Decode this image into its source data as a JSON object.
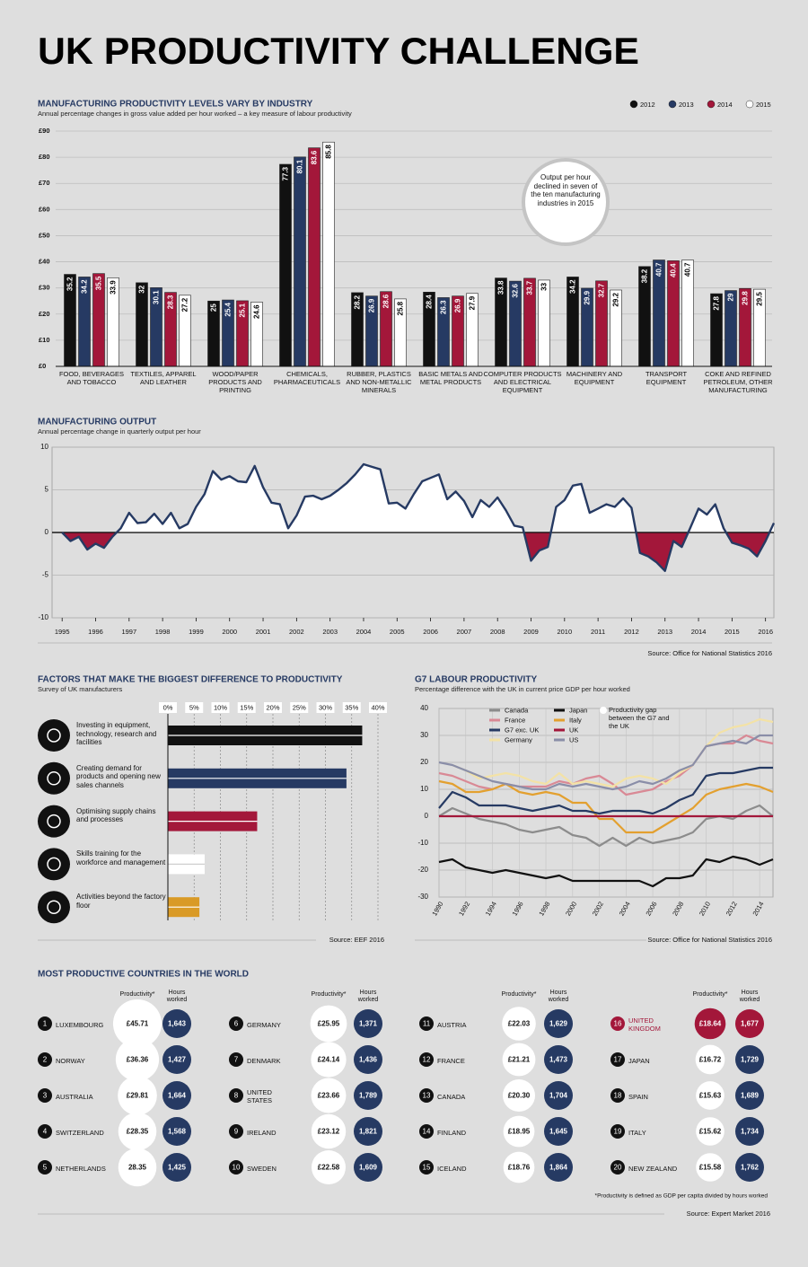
{
  "title": "UK PRODUCTIVITY CHALLENGE",
  "chart_data": [
    {
      "type": "bar",
      "title": "MANUFACTURING PRODUCTIVITY LEVELS VARY BY INDUSTRY",
      "subtitle": "Annual percentage changes in gross value added per hour worked – a key measure of labour productivity",
      "categories": [
        "FOOD, BEVERAGES AND TOBACCO",
        "TEXTILES, APPAREL AND LEATHER",
        "WOOD/PAPER PRODUCTS AND PRINTING",
        "CHEMICALS, PHARMACEUTICALS",
        "RUBBER, PLASTICS AND NON-METALLIC MINERALS",
        "BASIC METALS AND METAL PRODUCTS",
        "COMPUTER PRODUCTS AND ELECTRICAL EQUIPMENT",
        "MACHINERY AND EQUIPMENT",
        "TRANSPORT EQUIPMENT",
        "COKE AND REFINED PETROLEUM, OTHER MANUFACTURING"
      ],
      "series": [
        {
          "name": "2012",
          "color": "#111111",
          "values": [
            35.2,
            32,
            25,
            77.3,
            28.2,
            28.4,
            33.8,
            34.2,
            38.2,
            27.8
          ]
        },
        {
          "name": "2013",
          "color": "#263a63",
          "values": [
            34.2,
            30.1,
            25.4,
            80.1,
            26.9,
            26.3,
            32.6,
            29.9,
            40.7,
            29
          ]
        },
        {
          "name": "2014",
          "color": "#a3173a",
          "values": [
            35.5,
            28.3,
            25.1,
            83.6,
            28.6,
            26.9,
            33.7,
            32.7,
            40.4,
            29.8
          ]
        },
        {
          "name": "2015",
          "color": "#ffffff",
          "values": [
            33.9,
            27.2,
            24.6,
            85.8,
            25.8,
            27.9,
            33,
            29.2,
            40.7,
            29.5
          ]
        }
      ],
      "ylim": [
        0,
        90
      ],
      "yticks": [
        {
          "value": 0,
          "label": "£0"
        },
        {
          "value": 10,
          "label": "£10"
        },
        {
          "value": 20,
          "label": "£20"
        },
        {
          "value": 30,
          "label": "£30"
        },
        {
          "value": 40,
          "label": "£40"
        },
        {
          "value": 50,
          "label": "£50"
        },
        {
          "value": 60,
          "label": "£60"
        },
        {
          "value": 70,
          "label": "£70"
        },
        {
          "value": 80,
          "label": "£80"
        },
        {
          "value": 90,
          "label": "£90"
        }
      ],
      "grid": true,
      "legend": "top-right",
      "annotation": "Output per hour declined in seven of the ten manufacturing industries in 2015"
    },
    {
      "type": "area",
      "title": "MANUFACTURING OUTPUT",
      "subtitle": "Annual percentage change in quarterly output per hour",
      "x": [
        1995,
        1995.25,
        1995.5,
        1995.75,
        1996,
        1996.25,
        1996.5,
        1996.75,
        1997,
        1997.25,
        1997.5,
        1997.75,
        1998,
        1998.25,
        1998.5,
        1998.75,
        1999,
        1999.25,
        1999.5,
        1999.75,
        2000,
        2000.25,
        2000.5,
        2000.75,
        2001,
        2001.25,
        2001.5,
        2001.75,
        2002,
        2002.25,
        2002.5,
        2002.75,
        2003,
        2003.25,
        2003.5,
        2003.75,
        2004,
        2004.25,
        2004.5,
        2004.75,
        2005,
        2005.25,
        2005.5,
        2005.75,
        2006,
        2006.25,
        2006.5,
        2006.75,
        2007,
        2007.25,
        2007.5,
        2007.75,
        2008,
        2008.25,
        2008.5,
        2008.75,
        2009,
        2009.25,
        2009.5,
        2009.75,
        2010,
        2010.25,
        2010.5,
        2010.75,
        2011,
        2011.25,
        2011.5,
        2011.75,
        2012,
        2012.25,
        2012.5,
        2012.75,
        2013,
        2013.25,
        2013.5,
        2013.75,
        2014,
        2014.25,
        2014.5,
        2014.75,
        2015,
        2015.25,
        2015.5,
        2015.75,
        2016,
        2016.25
      ],
      "values": [
        0,
        -1,
        -0.5,
        -2,
        -1.3,
        -1.8,
        -0.5,
        0.5,
        2.3,
        1.1,
        1.2,
        2.2,
        1.0,
        2.3,
        0.5,
        1.0,
        3.0,
        4.5,
        7.2,
        6.2,
        6.6,
        6.0,
        5.9,
        7.8,
        5.3,
        3.5,
        3.3,
        0.5,
        2.0,
        4.2,
        4.3,
        3.9,
        4.3,
        5.0,
        5.8,
        6.8,
        8.0,
        7.7,
        7.4,
        3.4,
        3.5,
        2.8,
        4.5,
        6.0,
        6.4,
        6.8,
        3.9,
        4.8,
        3.7,
        1.8,
        3.8,
        3.0,
        4.1,
        2.6,
        0.8,
        0.6,
        -3.3,
        -2.1,
        -1.7,
        3.0,
        3.8,
        5.5,
        5.7,
        2.3,
        2.8,
        3.3,
        3.0,
        4.0,
        2.9,
        -2.4,
        -2.8,
        -3.5,
        -4.5,
        -1.0,
        -1.7,
        0.5,
        2.8,
        2.1,
        3.3,
        0.5,
        -1.2,
        -1.5,
        -1.9,
        -2.8,
        -1.0,
        1.1
      ],
      "xlim": [
        1994.7,
        2016.25
      ],
      "xticks": [
        1995,
        1996,
        1997,
        1998,
        1999,
        2000,
        2001,
        2002,
        2003,
        2004,
        2005,
        2006,
        2007,
        2008,
        2009,
        2010,
        2011,
        2012,
        2013,
        2014,
        2015,
        2016
      ],
      "ylim": [
        -10,
        10
      ],
      "yticks": [
        -10,
        -5,
        0,
        5,
        10
      ],
      "line_color": "#263a63",
      "positive_color": "#ffffff",
      "negative_color": "#a3173a",
      "source": "Source: Office for National Statistics 2016"
    },
    {
      "type": "hbar",
      "title": "FACTORS THAT MAKE THE BIGGEST DIFFERENCE TO PRODUCTIVITY",
      "subtitle": "Survey of UK manufacturers",
      "categories": [
        "Investing in equipment, technology, research and facilities",
        "Creating demand for products and opening new sales channels",
        "Optimising supply chains and processes",
        "Skills training for the workforce and management",
        "Activities beyond the factory floor"
      ],
      "values": [
        37,
        34,
        17,
        7,
        6
      ],
      "colors": [
        "#111111",
        "#263a63",
        "#a3173a",
        "#ffffff",
        "#d99a26"
      ],
      "xlim": [
        0,
        40
      ],
      "xticks": [
        {
          "value": 0,
          "label": "0%"
        },
        {
          "value": 5,
          "label": "5%"
        },
        {
          "value": 10,
          "label": "10%"
        },
        {
          "value": 15,
          "label": "15%"
        },
        {
          "value": 20,
          "label": "20%"
        },
        {
          "value": 25,
          "label": "25%"
        },
        {
          "value": 30,
          "label": "30%"
        },
        {
          "value": 35,
          "label": "35%"
        },
        {
          "value": 40,
          "label": "40%"
        }
      ],
      "grid": true,
      "source": "Source: EEF 2016"
    },
    {
      "type": "line",
      "title": "G7 LABOUR PRODUCTIVITY",
      "subtitle": "Percentage difference with the UK in current price GDP per hour worked",
      "x": [
        1990,
        1991,
        1992,
        1993,
        1994,
        1995,
        1996,
        1997,
        1998,
        1999,
        2000,
        2001,
        2002,
        2003,
        2004,
        2005,
        2006,
        2007,
        2008,
        2009,
        2010,
        2011,
        2012,
        2013,
        2014,
        2015
      ],
      "series": [
        {
          "name": "Canada",
          "color": "#8c8c8c",
          "values": [
            0,
            3,
            1,
            -1,
            -2,
            -3,
            -5,
            -6,
            -5,
            -4,
            -7,
            -8,
            -11,
            -8,
            -11,
            -8,
            -10,
            -9,
            -8,
            -6,
            -1,
            0,
            -1,
            2,
            4,
            0
          ]
        },
        {
          "name": "Japan",
          "color": "#111111",
          "values": [
            -17,
            -16,
            -19,
            -20,
            -21,
            -20,
            -21,
            -22,
            -23,
            -22,
            -24,
            -24,
            -24,
            -24,
            -24,
            -24,
            -26,
            -23,
            -23,
            -22,
            -16,
            -17,
            -15,
            -16,
            -18,
            -16
          ]
        },
        {
          "name": "France",
          "color": "#d98995",
          "values": [
            16,
            15,
            13,
            11,
            10,
            12,
            11,
            11,
            11,
            13,
            12,
            14,
            15,
            12,
            8,
            9,
            10,
            13,
            15,
            19,
            26,
            27,
            27,
            30,
            28,
            27
          ]
        },
        {
          "name": "Italy",
          "color": "#e3a02f",
          "values": [
            13,
            12,
            9,
            9,
            10,
            12,
            9,
            8,
            9,
            8,
            5,
            5,
            -1,
            -1,
            -6,
            -6,
            -6,
            -3,
            0,
            3,
            8,
            10,
            11,
            12,
            11,
            9
          ]
        },
        {
          "name": "G7 exc. UK",
          "color": "#263a63",
          "values": [
            3,
            9,
            7,
            4,
            4,
            4,
            3,
            2,
            3,
            4,
            2,
            2,
            1,
            2,
            2,
            2,
            1,
            3,
            6,
            8,
            15,
            16,
            16,
            17,
            18,
            18
          ]
        },
        {
          "name": "UK",
          "color": "#a3173a",
          "values": [
            0,
            0,
            0,
            0,
            0,
            0,
            0,
            0,
            0,
            0,
            0,
            0,
            0,
            0,
            0,
            0,
            0,
            0,
            0,
            0,
            0,
            0,
            0,
            0,
            0,
            0
          ]
        },
        {
          "name": "Germany",
          "color": "#f3e2a6",
          "values": [
            null,
            19,
            17,
            14,
            15,
            16,
            15,
            13,
            12,
            16,
            12,
            13,
            12,
            11,
            14,
            15,
            14,
            12,
            16,
            19,
            26,
            31,
            33,
            34,
            36,
            35
          ]
        },
        {
          "name": "US",
          "color": "#8a8ea8",
          "values": [
            20,
            19,
            17,
            15,
            13,
            12,
            11,
            10,
            10,
            12,
            11,
            12,
            11,
            10,
            11,
            13,
            12,
            14,
            17,
            19,
            26,
            27,
            28,
            27,
            30,
            30
          ]
        }
      ],
      "xlim": [
        1990,
        2015
      ],
      "xticks": [
        1990,
        1992,
        1994,
        1996,
        1998,
        2000,
        2002,
        2004,
        2006,
        2008,
        2010,
        2012,
        2014
      ],
      "ylim": [
        -30,
        40
      ],
      "yticks": [
        -30,
        -20,
        -10,
        0,
        10,
        20,
        30,
        40
      ],
      "grid": true,
      "annotation": "Productivity gap between the G7 and the UK",
      "source": "Source: Office for National Statistics 2016"
    }
  ],
  "countries": {
    "title": "MOST PRODUCTIVE COUNTRIES IN THE WORLD",
    "headers": [
      "Productivity*",
      "Hours worked"
    ],
    "circle_color": "#263a63",
    "rows": [
      {
        "rank": 1,
        "name": "LUXEMBOURG",
        "productivity": 45.71,
        "productivity_label": "£45.71",
        "hours": 1643,
        "hours_label": "1,643"
      },
      {
        "rank": 2,
        "name": "NORWAY",
        "productivity": 36.36,
        "productivity_label": "£36.36",
        "hours": 1427,
        "hours_label": "1,427"
      },
      {
        "rank": 3,
        "name": "AUSTRALIA",
        "productivity": 29.81,
        "productivity_label": "£29.81",
        "hours": 1664,
        "hours_label": "1,664"
      },
      {
        "rank": 4,
        "name": "SWITZERLAND",
        "productivity": 28.35,
        "productivity_label": "£28.35",
        "hours": 1568,
        "hours_label": "1,568"
      },
      {
        "rank": 5,
        "name": "NETHERLANDS",
        "productivity": 28.35,
        "hours": 1425,
        "hours_label": "1,425"
      },
      {
        "rank": 6,
        "name": "GERMANY",
        "productivity": 25.95,
        "productivity_label": "£25.95",
        "hours": 1371,
        "hours_label": "1,371"
      },
      {
        "rank": 7,
        "name": "DENMARK",
        "productivity": 24.14,
        "productivity_label": "£24.14",
        "hours": 1436,
        "hours_label": "1,436"
      },
      {
        "rank": 8,
        "name": "UNITED STATES",
        "productivity": 23.66,
        "productivity_label": "£23.66",
        "hours": 1789,
        "hours_label": "1,789"
      },
      {
        "rank": 9,
        "name": "IRELAND",
        "productivity": 23.12,
        "productivity_label": "£23.12",
        "hours": 1821,
        "hours_label": "1,821"
      },
      {
        "rank": 10,
        "name": "SWEDEN",
        "productivity": 22.58,
        "productivity_label": "£22.58",
        "hours": 1609,
        "hours_label": "1,609"
      },
      {
        "rank": 11,
        "name": "AUSTRIA",
        "productivity": 22.03,
        "productivity_label": "£22.03",
        "hours": 1629,
        "hours_label": "1,629"
      },
      {
        "rank": 12,
        "name": "FRANCE",
        "productivity": 21.21,
        "productivity_label": "£21.21",
        "hours": 1473,
        "hours_label": "1,473"
      },
      {
        "rank": 13,
        "name": "CANADA",
        "productivity": 20.3,
        "productivity_label": "£20.30",
        "hours": 1704,
        "hours_label": "1,704"
      },
      {
        "rank": 14,
        "name": "FINLAND",
        "productivity": 18.95,
        "productivity_label": "£18.95",
        "hours": 1645,
        "hours_label": "1,645"
      },
      {
        "rank": 15,
        "name": "ICELAND",
        "productivity": 18.76,
        "productivity_label": "£18.76",
        "hours": 1864,
        "hours_label": "1,864"
      },
      {
        "rank": 16,
        "name": "UNITED KINGDOM",
        "productivity": 18.64,
        "productivity_label": "£18.64",
        "hours": 1677,
        "hours_label": "1,677",
        "color": "#a3173a"
      },
      {
        "rank": 17,
        "name": "JAPAN",
        "productivity": 16.72,
        "productivity_label": "£16.72",
        "hours": 1729,
        "hours_label": "1,729"
      },
      {
        "rank": 18,
        "name": "SPAIN",
        "productivity": 15.63,
        "productivity_label": "£15.63",
        "hours": 1689,
        "hours_label": "1,689"
      },
      {
        "rank": 19,
        "name": "ITALY",
        "productivity": 15.62,
        "productivity_label": "£15.62",
        "hours": 1734,
        "hours_label": "1,734"
      },
      {
        "rank": 20,
        "name": "NEW ZEALAND",
        "productivity": 15.58,
        "productivity_label": "£15.58",
        "hours": 1762,
        "hours_label": "1,762"
      }
    ],
    "footnote": "*Productivity is defined as GDP per capita divided by hours worked",
    "source": "Source: Expert Market 2016"
  }
}
